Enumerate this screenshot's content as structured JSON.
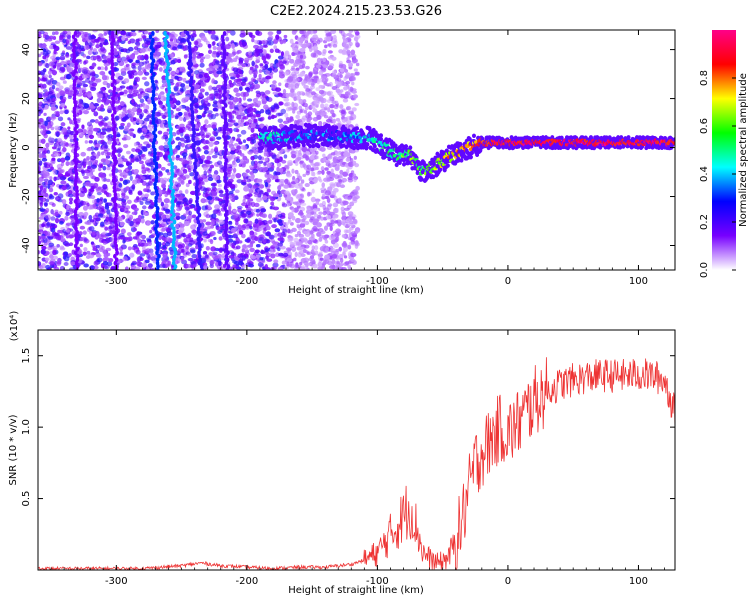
{
  "title": "C2E2.2024.215.23.53.G26",
  "chart_data": [
    {
      "type": "heatmap",
      "xlabel": "Height of straight line (km)",
      "ylabel": "Frequency (Hz)",
      "xlim": [
        -360,
        128
      ],
      "ylim": [
        -50,
        48
      ],
      "xticks": [
        -300,
        -200,
        -100,
        0,
        100
      ],
      "yticks": [
        -40,
        -20,
        0,
        20,
        40
      ],
      "colorbar": {
        "label": "Normalized spectral amplitude",
        "range": [
          0,
          1
        ],
        "ticks": [
          "0.0",
          "0.2",
          "0.4",
          "0.6",
          "0.8"
        ],
        "colors": [
          "#ffffff",
          "#7700ff",
          "#0000ff",
          "#00ffff",
          "#00ff00",
          "#ffff00",
          "#ff0000",
          "#ff0088"
        ]
      },
      "trace": [
        {
          "x": -190,
          "y": 4,
          "amp": 0.45
        },
        {
          "x": -175,
          "y": 4,
          "amp": 0.4
        },
        {
          "x": -160,
          "y": 5,
          "amp": 0.3
        },
        {
          "x": -140,
          "y": 5,
          "amp": 0.3
        },
        {
          "x": -120,
          "y": 4,
          "amp": 0.35
        },
        {
          "x": -105,
          "y": 4,
          "amp": 0.45
        },
        {
          "x": -95,
          "y": 0,
          "amp": 0.5
        },
        {
          "x": -85,
          "y": -3,
          "amp": 0.55
        },
        {
          "x": -75,
          "y": -3,
          "amp": 0.6
        },
        {
          "x": -65,
          "y": -10,
          "amp": 0.55
        },
        {
          "x": -55,
          "y": -7,
          "amp": 0.6
        },
        {
          "x": -45,
          "y": -4,
          "amp": 0.7
        },
        {
          "x": -35,
          "y": -1,
          "amp": 0.75
        },
        {
          "x": -25,
          "y": 1,
          "amp": 0.8
        },
        {
          "x": -15,
          "y": 2,
          "amp": 0.85
        },
        {
          "x": 0,
          "y": 2,
          "amp": 0.9
        },
        {
          "x": 50,
          "y": 2,
          "amp": 0.9
        },
        {
          "x": 100,
          "y": 2,
          "amp": 0.9
        },
        {
          "x": 128,
          "y": 2,
          "amp": 0.9
        }
      ]
    },
    {
      "type": "line",
      "xlabel": "Height of straight line (km)",
      "ylabel": "SNR (10 * v/v)",
      "multiplier": "(x10⁴)",
      "xlim": [
        -360,
        128
      ],
      "ylim": [
        0,
        1.68
      ],
      "xticks": [
        -300,
        -200,
        -100,
        0,
        100
      ],
      "yticks": [
        0.5,
        1.0,
        1.5
      ],
      "ytick_labels": [
        "0.5",
        "1.0",
        "1.5"
      ],
      "series": [
        {
          "color": "#ee3333",
          "x": [
            -360,
            -320,
            -280,
            -250,
            -235,
            -220,
            -200,
            -180,
            -160,
            -140,
            -130,
            -120,
            -110,
            -100,
            -95,
            -90,
            -85,
            -80,
            -75,
            -70,
            -65,
            -60,
            -55,
            -50,
            -45,
            -40,
            -35,
            -30,
            -25,
            -20,
            -15,
            -10,
            -5,
            0,
            10,
            20,
            30,
            40,
            50,
            60,
            70,
            80,
            90,
            100,
            110,
            120,
            128
          ],
          "y": [
            0.01,
            0.01,
            0.01,
            0.03,
            0.05,
            0.03,
            0.02,
            0.01,
            0.02,
            0.02,
            0.03,
            0.04,
            0.07,
            0.12,
            0.18,
            0.25,
            0.3,
            0.38,
            0.45,
            0.3,
            0.12,
            0.08,
            0.05,
            0.06,
            0.1,
            0.2,
            0.35,
            0.55,
            0.75,
            0.82,
            0.88,
            0.95,
            1.0,
            0.95,
            1.05,
            1.18,
            1.25,
            1.3,
            1.33,
            1.35,
            1.36,
            1.36,
            1.36,
            1.37,
            1.36,
            1.33,
            1.1
          ]
        }
      ]
    }
  ]
}
